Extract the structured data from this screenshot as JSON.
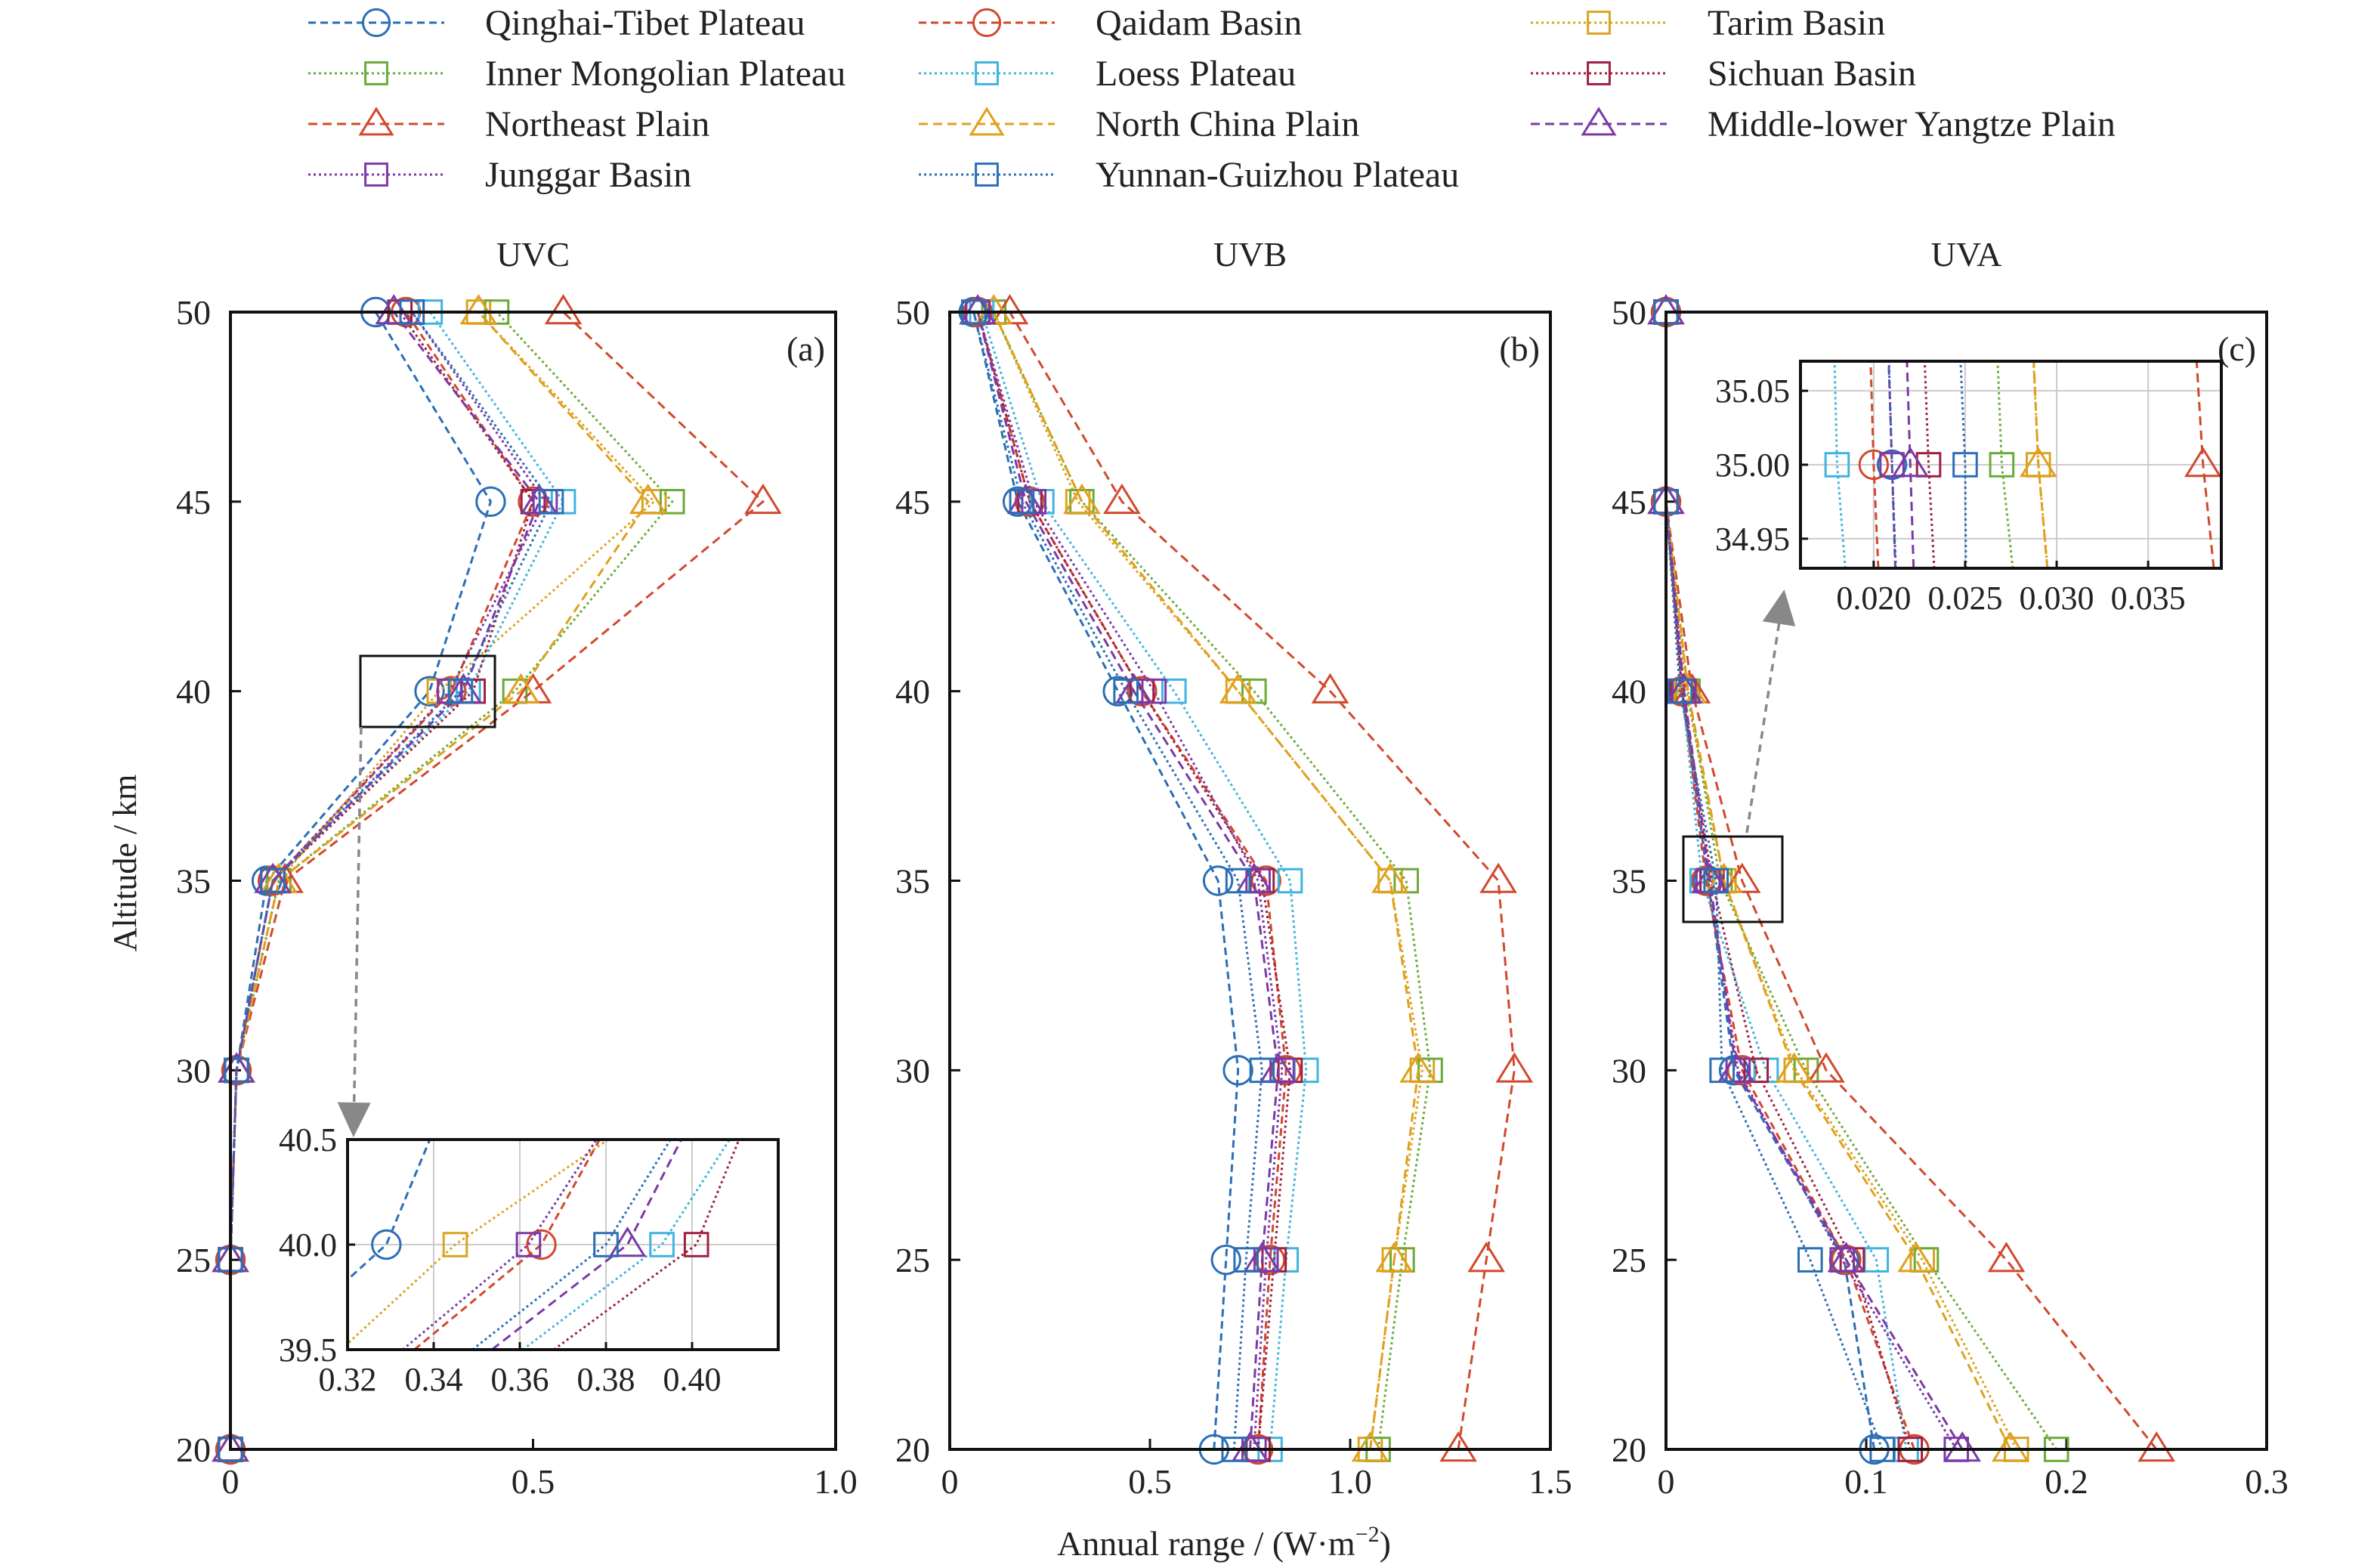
{
  "figure": {
    "y_axis_label": "Altitude / km",
    "x_axis_label": "Annual range / (W·m",
    "x_axis_label_sup": "−2",
    "x_axis_label_end": ")"
  },
  "legend": [
    {
      "name": "Qinghai-Tibet Plateau",
      "color": "#2b6fb6",
      "marker": "circle",
      "dash": "10,6"
    },
    {
      "name": "Qaidam Basin",
      "color": "#d1492e",
      "marker": "circle",
      "dash": "10,6"
    },
    {
      "name": "Tarim Basin",
      "color": "#d9a520",
      "marker": "square",
      "dash": "3,4"
    },
    {
      "name": "Inner Mongolian Plateau",
      "color": "#6aab3a",
      "marker": "square",
      "dash": "3,4"
    },
    {
      "name": "Loess Plateau",
      "color": "#3fb4df",
      "marker": "square",
      "dash": "3,4"
    },
    {
      "name": "Sichuan Basin",
      "color": "#9e2141",
      "marker": "square",
      "dash": "3,4"
    },
    {
      "name": "Northeast Plain",
      "color": "#d1492e",
      "marker": "triangle",
      "dash": "12,7"
    },
    {
      "name": "North China Plain",
      "color": "#e0a01e",
      "marker": "triangle",
      "dash": "12,7"
    },
    {
      "name": "Middle-lower Yangtze Plain",
      "color": "#7b3aa6",
      "marker": "triangle",
      "dash": "12,7"
    },
    {
      "name": "Junggar Basin",
      "color": "#7b3aa6",
      "marker": "square",
      "dash": "3,4"
    },
    {
      "name": "Yunnan-Guizhou Plateau",
      "color": "#2b6fb6",
      "marker": "square",
      "dash": "3,4"
    }
  ],
  "chart_data": [
    {
      "type": "line",
      "title": "UVC",
      "panel_label": "(a)",
      "xlim": [
        0,
        1.0
      ],
      "ylim": [
        20,
        50
      ],
      "xticks": [
        0,
        0.5,
        1.0
      ],
      "xtick_labels": [
        "0",
        "0.5",
        "1.0"
      ],
      "yticks": [
        20,
        25,
        30,
        35,
        40,
        45,
        50
      ],
      "y": [
        20,
        25,
        30,
        35,
        40,
        45,
        50
      ],
      "series": [
        {
          "name": "Qinghai-Tibet Plateau",
          "values": [
            0.0,
            0.0,
            0.01,
            0.06,
            0.329,
            0.43,
            0.24
          ]
        },
        {
          "name": "Qaidam Basin",
          "values": [
            0.0,
            0.0,
            0.01,
            0.07,
            0.365,
            0.5,
            0.29
          ]
        },
        {
          "name": "Tarim Basin",
          "values": [
            0.0,
            0.0,
            0.01,
            0.08,
            0.345,
            0.7,
            0.41
          ]
        },
        {
          "name": "Inner Mongolian Plateau",
          "values": [
            0.0,
            0.0,
            0.01,
            0.08,
            0.47,
            0.73,
            0.44
          ]
        },
        {
          "name": "Loess Plateau",
          "values": [
            0.0,
            0.0,
            0.01,
            0.07,
            0.393,
            0.55,
            0.33
          ]
        },
        {
          "name": "Sichuan Basin",
          "values": [
            0.0,
            0.0,
            0.01,
            0.07,
            0.401,
            0.5,
            0.28
          ]
        },
        {
          "name": "Northeast Plain",
          "values": [
            0.0,
            0.0,
            0.01,
            0.09,
            0.5,
            0.88,
            0.55
          ]
        },
        {
          "name": "North China Plain",
          "values": [
            0.0,
            0.0,
            0.01,
            0.08,
            0.48,
            0.69,
            0.41
          ]
        },
        {
          "name": "Middle-lower Yangtze Plain",
          "values": [
            0.0,
            0.0,
            0.01,
            0.07,
            0.385,
            0.51,
            0.27
          ]
        },
        {
          "name": "Junggar Basin",
          "values": [
            0.0,
            0.0,
            0.01,
            0.07,
            0.362,
            0.52,
            0.3
          ]
        },
        {
          "name": "Yunnan-Guizhou Plateau",
          "values": [
            0.0,
            0.0,
            0.01,
            0.07,
            0.38,
            0.53,
            0.3
          ]
        }
      ],
      "inset": {
        "xlim": [
          0.32,
          0.42
        ],
        "ylim": [
          39.5,
          40.5
        ],
        "xticks": [
          0.32,
          0.34,
          0.36,
          0.38,
          0.4
        ],
        "xtick_labels": [
          "0.32",
          "0.34",
          "0.36",
          "0.38",
          "0.40"
        ],
        "yticks": [
          39.5,
          40.0,
          40.5
        ],
        "ytick_labels": [
          "39.5",
          "40.0",
          "40.5"
        ]
      }
    },
    {
      "type": "line",
      "title": "UVB",
      "panel_label": "(b)",
      "xlim": [
        0,
        1.5
      ],
      "ylim": [
        20,
        50
      ],
      "xticks": [
        0,
        0.5,
        1.0,
        1.5
      ],
      "xtick_labels": [
        "0",
        "0.5",
        "1.0",
        "1.5"
      ],
      "yticks": [
        20,
        25,
        30,
        35,
        40,
        45,
        50
      ],
      "y": [
        20,
        25,
        30,
        35,
        40,
        45,
        50
      ],
      "series": [
        {
          "name": "Qinghai-Tibet Plateau",
          "values": [
            0.66,
            0.69,
            0.72,
            0.67,
            0.42,
            0.17,
            0.06
          ]
        },
        {
          "name": "Qaidam Basin",
          "values": [
            0.77,
            0.8,
            0.84,
            0.79,
            0.48,
            0.2,
            0.07
          ]
        },
        {
          "name": "Tarim Basin",
          "values": [
            1.05,
            1.11,
            1.18,
            1.1,
            0.72,
            0.32,
            0.11
          ]
        },
        {
          "name": "Inner Mongolian Plateau",
          "values": [
            1.07,
            1.13,
            1.2,
            1.14,
            0.76,
            0.33,
            0.11
          ]
        },
        {
          "name": "Loess Plateau",
          "values": [
            0.8,
            0.84,
            0.89,
            0.85,
            0.56,
            0.23,
            0.08
          ]
        },
        {
          "name": "Sichuan Basin",
          "values": [
            0.77,
            0.81,
            0.85,
            0.78,
            0.48,
            0.2,
            0.07
          ]
        },
        {
          "name": "Northeast Plain",
          "values": [
            1.27,
            1.34,
            1.41,
            1.37,
            0.95,
            0.43,
            0.15
          ]
        },
        {
          "name": "North China Plain",
          "values": [
            1.05,
            1.11,
            1.17,
            1.1,
            0.72,
            0.33,
            0.11
          ]
        },
        {
          "name": "Middle-lower Yangtze Plain",
          "values": [
            0.75,
            0.78,
            0.82,
            0.76,
            0.46,
            0.19,
            0.07
          ]
        },
        {
          "name": "Junggar Basin",
          "values": [
            0.76,
            0.79,
            0.83,
            0.77,
            0.51,
            0.21,
            0.07
          ]
        },
        {
          "name": "Yunnan-Guizhou Plateau",
          "values": [
            0.71,
            0.74,
            0.78,
            0.72,
            0.44,
            0.18,
            0.06
          ]
        }
      ]
    },
    {
      "type": "line",
      "title": "UVA",
      "panel_label": "(c)",
      "xlim": [
        0,
        0.3
      ],
      "ylim": [
        20,
        50
      ],
      "xticks": [
        0,
        0.1,
        0.2,
        0.3
      ],
      "xtick_labels": [
        "0",
        "0.1",
        "0.2",
        "0.3"
      ],
      "yticks": [
        20,
        25,
        30,
        35,
        40,
        45,
        50
      ],
      "y": [
        20,
        25,
        30,
        35,
        40,
        45,
        50
      ],
      "series": [
        {
          "name": "Qinghai-Tibet Plateau",
          "values": [
            0.104,
            0.089,
            0.034,
            0.021,
            0.008,
            0.0,
            0.0
          ]
        },
        {
          "name": "Qaidam Basin",
          "values": [
            0.124,
            0.09,
            0.038,
            0.02,
            0.008,
            0.0,
            0.0
          ]
        },
        {
          "name": "Tarim Basin",
          "values": [
            0.175,
            0.128,
            0.065,
            0.029,
            0.01,
            0.0,
            0.0
          ]
        },
        {
          "name": "Inner Mongolian Plateau",
          "values": [
            0.195,
            0.13,
            0.07,
            0.027,
            0.011,
            0.0,
            0.0
          ]
        },
        {
          "name": "Loess Plateau",
          "values": [
            0.12,
            0.105,
            0.05,
            0.018,
            0.008,
            0.0,
            0.0
          ]
        },
        {
          "name": "Sichuan Basin",
          "values": [
            0.122,
            0.093,
            0.045,
            0.023,
            0.008,
            0.0,
            0.0
          ]
        },
        {
          "name": "Northeast Plain",
          "values": [
            0.245,
            0.17,
            0.08,
            0.038,
            0.013,
            0.0,
            0.0
          ]
        },
        {
          "name": "North China Plain",
          "values": [
            0.172,
            0.125,
            0.064,
            0.029,
            0.011,
            0.0,
            0.0
          ]
        },
        {
          "name": "Middle-lower Yangtze Plain",
          "values": [
            0.148,
            0.09,
            0.035,
            0.022,
            0.009,
            0.0,
            0.0
          ]
        },
        {
          "name": "Junggar Basin",
          "values": [
            0.145,
            0.088,
            0.036,
            0.021,
            0.009,
            0.0,
            0.0
          ]
        },
        {
          "name": "Yunnan-Guizhou Plateau",
          "values": [
            0.108,
            0.072,
            0.028,
            0.025,
            0.007,
            0.0,
            0.0
          ]
        }
      ],
      "inset": {
        "xlim": [
          0.016,
          0.039
        ],
        "ylim": [
          34.93,
          35.07
        ],
        "xticks": [
          0.02,
          0.025,
          0.03,
          0.035
        ],
        "xtick_labels": [
          "0.020",
          "0.025",
          "0.030",
          "0.035"
        ],
        "yticks": [
          34.95,
          35.0,
          35.05
        ],
        "ytick_labels": [
          "34.95",
          "35.00",
          "35.05"
        ]
      }
    }
  ]
}
